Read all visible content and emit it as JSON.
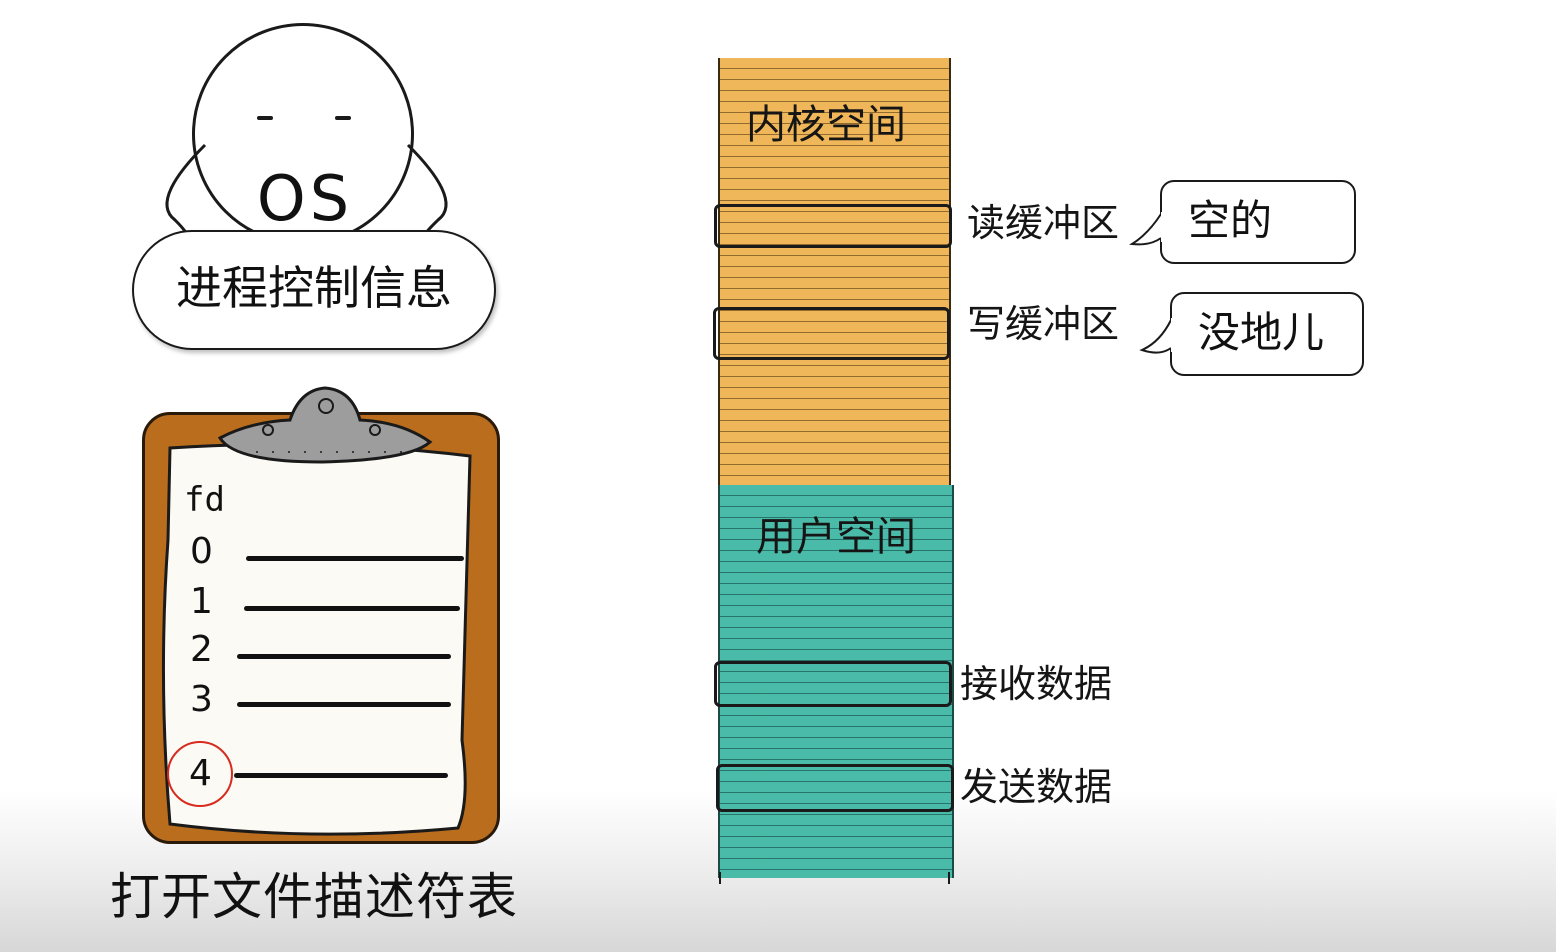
{
  "os": {
    "face_label": "OS",
    "sign_text": "进程控制信息"
  },
  "fd_table": {
    "header": "fd",
    "rows": [
      "0",
      "1",
      "2",
      "3",
      "4"
    ],
    "highlighted": "4",
    "caption": "打开文件描述符表"
  },
  "memory": {
    "kernel_space": {
      "title": "内核空间",
      "color": "#efb759",
      "read_buffer": {
        "label": "读缓冲区",
        "status": "空的"
      },
      "write_buffer": {
        "label": "写缓冲区",
        "status": "没地儿"
      }
    },
    "user_space": {
      "title": "用户空间",
      "color": "#4bbba9",
      "receive": {
        "label": "接收数据"
      },
      "send": {
        "label": "发送数据"
      }
    }
  },
  "colors": {
    "highlight_circle": "#d62b1e",
    "clipboard": "#b96d1d"
  }
}
